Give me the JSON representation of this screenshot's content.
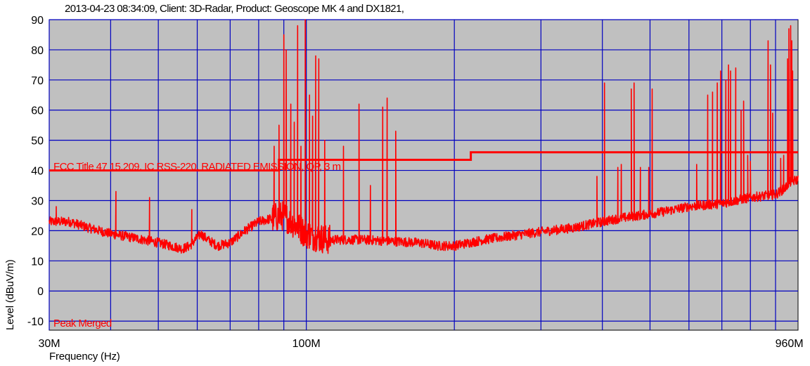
{
  "chart_data": {
    "type": "line",
    "title": "2013-04-23 08:34:09, Client: 3D-Radar,   Product: Geoscope MK 4 and DX1821,",
    "xlabel": "Frequency (Hz)",
    "ylabel": "Level (dBuV/m)",
    "x_scale": "log",
    "xlim": [
      30000000,
      1000000000
    ],
    "ylim": [
      -13,
      90
    ],
    "y_ticks": [
      -10,
      0,
      10,
      20,
      30,
      40,
      50,
      60,
      70,
      80,
      90
    ],
    "x_tick_labels": [
      {
        "value": 30000000,
        "label": "30M"
      },
      {
        "value": 100000000,
        "label": "100M"
      },
      {
        "value": 960000000,
        "label": "960M"
      }
    ],
    "grid": true,
    "colors": {
      "plot_background": "#c0c0c0",
      "grid": "#0000c0",
      "trace": "#ff0000"
    },
    "limit_line": {
      "name": "FCC Title 47 15.209, IC RSS-220, RADIATED EMISSION, QP, 3 m",
      "points": [
        [
          30000000,
          40
        ],
        [
          88000000,
          40
        ],
        [
          88000000,
          43.5
        ],
        [
          216000000,
          43.5
        ],
        [
          216000000,
          46
        ],
        [
          1000000000,
          46
        ]
      ]
    },
    "series": [
      {
        "name": "Peak Merged",
        "baseline": [
          [
            30000000,
            23
          ],
          [
            33000000,
            23
          ],
          [
            36000000,
            21
          ],
          [
            40000000,
            19
          ],
          [
            45000000,
            17.5
          ],
          [
            50000000,
            16
          ],
          [
            53000000,
            15
          ],
          [
            56000000,
            14
          ],
          [
            58000000,
            15
          ],
          [
            61000000,
            19
          ],
          [
            63000000,
            17
          ],
          [
            66000000,
            15
          ],
          [
            70000000,
            16
          ],
          [
            75000000,
            20
          ],
          [
            80000000,
            23
          ],
          [
            90000000,
            25
          ],
          [
            100000000,
            19
          ],
          [
            110000000,
            17
          ],
          [
            130000000,
            17
          ],
          [
            150000000,
            16.5
          ],
          [
            170000000,
            16
          ],
          [
            185000000,
            15
          ],
          [
            200000000,
            15
          ],
          [
            230000000,
            17
          ],
          [
            280000000,
            19
          ],
          [
            350000000,
            21
          ],
          [
            430000000,
            24
          ],
          [
            520000000,
            26
          ],
          [
            600000000,
            28
          ],
          [
            700000000,
            29
          ],
          [
            800000000,
            31
          ],
          [
            900000000,
            32
          ],
          [
            940000000,
            34
          ],
          [
            960000000,
            36
          ],
          [
            1000000000,
            37
          ]
        ],
        "peaks": [
          [
            31000000,
            28
          ],
          [
            41000000,
            33
          ],
          [
            48000000,
            31
          ],
          [
            58500000,
            27
          ],
          [
            86000000,
            48
          ],
          [
            88000000,
            55
          ],
          [
            90000000,
            85
          ],
          [
            91000000,
            80
          ],
          [
            93000000,
            62
          ],
          [
            94500000,
            56
          ],
          [
            96000000,
            88
          ],
          [
            97500000,
            48
          ],
          [
            99500000,
            90
          ],
          [
            101500000,
            65
          ],
          [
            103000000,
            58
          ],
          [
            104500000,
            78
          ],
          [
            106000000,
            77
          ],
          [
            109000000,
            50
          ],
          [
            119000000,
            48
          ],
          [
            128000000,
            62
          ],
          [
            135000000,
            35
          ],
          [
            143000000,
            61
          ],
          [
            146000000,
            64
          ],
          [
            152000000,
            53
          ],
          [
            390000000,
            38
          ],
          [
            404000000,
            69
          ],
          [
            430000000,
            41
          ],
          [
            437000000,
            42
          ],
          [
            458000000,
            67
          ],
          [
            464000000,
            69
          ],
          [
            478000000,
            41
          ],
          [
            497000000,
            41
          ],
          [
            505000000,
            67
          ],
          [
            622000000,
            42
          ],
          [
            655000000,
            65
          ],
          [
            670000000,
            66
          ],
          [
            685000000,
            69
          ],
          [
            696000000,
            73
          ],
          [
            713000000,
            70
          ],
          [
            722000000,
            75
          ],
          [
            729000000,
            73
          ],
          [
            747000000,
            74
          ],
          [
            766000000,
            60
          ],
          [
            775000000,
            63
          ],
          [
            790000000,
            45
          ],
          [
            800000000,
            43
          ],
          [
            869000000,
            83
          ],
          [
            879000000,
            75
          ],
          [
            888000000,
            59
          ],
          [
            922000000,
            44
          ],
          [
            935000000,
            45
          ],
          [
            952000000,
            77
          ],
          [
            958000000,
            87
          ],
          [
            966000000,
            88
          ],
          [
            971000000,
            83
          ],
          [
            975000000,
            73
          ]
        ]
      }
    ]
  }
}
